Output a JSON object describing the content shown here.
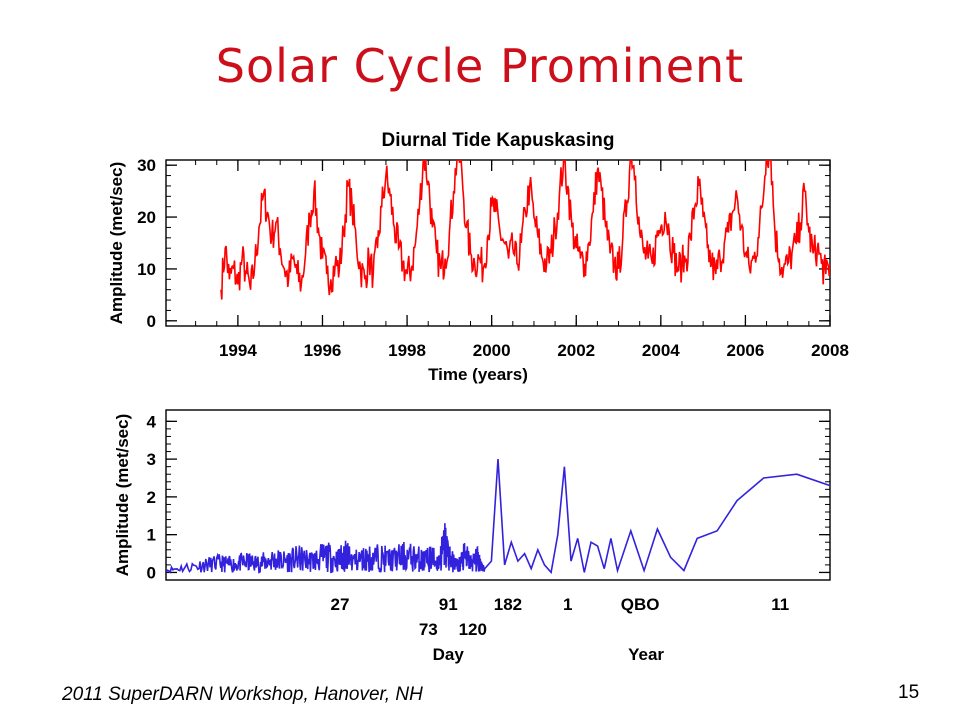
{
  "slide": {
    "title": "Solar Cycle Prominent",
    "footer": "2011 SuperDARN Workshop, Hanover, NH",
    "page_number": "15"
  },
  "chart_data": [
    {
      "type": "line",
      "title": "Diurnal Tide Kapuskasing",
      "xlabel": "Time (years)",
      "ylabel": "Amplitude (met/sec)",
      "xlim": [
        1992.3,
        2008.0
      ],
      "ylim": [
        -1,
        31
      ],
      "x_ticks": [
        1994,
        1996,
        1998,
        2000,
        2002,
        2004,
        2006,
        2008
      ],
      "y_ticks": [
        0,
        10,
        20,
        30
      ],
      "color": "#ff0000",
      "series": [
        {
          "x": [
            1993.6,
            1993.7,
            1993.8,
            1993.9,
            1994.0,
            1994.1,
            1994.2,
            1994.3,
            1994.4,
            1994.5,
            1994.6,
            1994.7,
            1994.8,
            1994.9,
            1995.0,
            1995.1,
            1995.2,
            1995.3,
            1995.4,
            1995.5,
            1995.6,
            1995.7,
            1995.8,
            1995.9,
            1996.0,
            1996.1,
            1996.2,
            1996.3,
            1996.4,
            1996.5,
            1996.6,
            1996.7,
            1996.8,
            1996.9,
            1997.0,
            1997.1,
            1997.2,
            1997.3,
            1997.4,
            1997.5,
            1997.6,
            1997.7,
            1997.8,
            1997.9,
            1998.0,
            1998.1,
            1998.2,
            1998.3,
            1998.4,
            1998.5,
            1998.6,
            1998.7,
            1998.8,
            1998.9,
            1999.0,
            1999.1,
            1999.2,
            1999.3,
            1999.4,
            1999.5,
            1999.6,
            1999.7,
            1999.8,
            1999.9,
            2000.0,
            2000.1,
            2000.2,
            2000.3,
            2000.4,
            2000.5,
            2000.6,
            2000.7,
            2000.8,
            2000.9,
            2001.0,
            2001.1,
            2001.2,
            2001.3,
            2001.4,
            2001.5,
            2001.6,
            2001.7,
            2001.8,
            2001.9,
            2002.0,
            2002.1,
            2002.2,
            2002.3,
            2002.4,
            2002.5,
            2002.6,
            2002.7,
            2002.8,
            2002.9,
            2003.0,
            2003.1,
            2003.2,
            2003.3,
            2003.4,
            2003.5,
            2003.6,
            2003.7,
            2003.8,
            2003.9,
            2004.0,
            2004.1,
            2004.2,
            2004.3,
            2004.4,
            2004.5,
            2004.6,
            2004.7,
            2004.8,
            2004.9,
            2005.0,
            2005.1,
            2005.2,
            2005.3,
            2005.4,
            2005.5,
            2005.6,
            2005.7,
            2005.8,
            2005.9,
            2006.0,
            2006.1,
            2006.2,
            2006.3,
            2006.4,
            2006.5,
            2006.6,
            2006.7,
            2006.8,
            2006.9,
            2007.0,
            2007.1,
            2007.2,
            2007.3,
            2007.4,
            2007.5,
            2007.6,
            2007.7,
            2007.8,
            2007.9,
            2008.0
          ],
          "y": [
            6,
            14,
            8,
            10,
            7,
            12,
            9,
            6,
            11,
            18,
            24,
            21,
            16,
            19,
            14,
            10,
            8,
            12,
            9,
            7,
            13,
            20,
            25,
            18,
            12,
            9,
            8,
            11,
            10,
            17,
            26,
            22,
            15,
            10,
            8,
            12,
            9,
            14,
            22,
            28,
            24,
            18,
            14,
            11,
            9,
            10,
            15,
            23,
            32,
            27,
            18,
            13,
            10,
            12,
            17,
            25,
            33,
            28,
            18,
            13,
            11,
            12,
            10,
            16,
            22,
            21,
            17,
            15,
            12,
            14,
            11,
            15,
            21,
            26,
            20,
            16,
            12,
            11,
            13,
            18,
            24,
            31,
            26,
            18,
            14,
            12,
            11,
            15,
            21,
            29,
            25,
            18,
            13,
            11,
            10,
            16,
            23,
            33,
            28,
            17,
            13,
            12,
            11,
            16,
            18,
            21,
            17,
            13,
            10,
            11,
            12,
            16,
            22,
            26,
            20,
            14,
            11,
            9,
            12,
            15,
            17,
            21,
            24,
            18,
            13,
            10,
            12,
            16,
            22,
            33,
            32,
            17,
            12,
            10,
            11,
            13,
            15,
            19,
            25,
            17,
            13,
            14,
            11,
            9,
            11
          ]
        }
      ]
    },
    {
      "type": "line",
      "xlabel_groups": [
        "Day",
        "Year"
      ],
      "ylabel": "Amplitude (met/sec)",
      "ylim": [
        -0.2,
        4.3
      ],
      "y_ticks": [
        0,
        1,
        2,
        3,
        4
      ],
      "x_tick_labels_row1": [
        "27",
        "91",
        "182",
        "1",
        "QBO",
        "11"
      ],
      "x_tick_labels_row2": [
        "73",
        "120"
      ],
      "color": "#3322dd",
      "series": [
        {
          "x": [
            0.0,
            0.05,
            0.08,
            0.1,
            0.12,
            0.14,
            0.16,
            0.18,
            0.2,
            0.22,
            0.24,
            0.26,
            0.27,
            0.28,
            0.3,
            0.32,
            0.34,
            0.36,
            0.38,
            0.39,
            0.4,
            0.41,
            0.42,
            0.43,
            0.44,
            0.45,
            0.46,
            0.47,
            0.48,
            0.49,
            0.5,
            0.51,
            0.52,
            0.53,
            0.54,
            0.55,
            0.56,
            0.57,
            0.58,
            0.59,
            0.6,
            0.61,
            0.62,
            0.63,
            0.64,
            0.65,
            0.66,
            0.67,
            0.68,
            0.7,
            0.72,
            0.74,
            0.76,
            0.78,
            0.8,
            0.83,
            0.86,
            0.9,
            0.95,
            1.0
          ],
          "y": [
            0.1,
            0.3,
            0.4,
            0.35,
            0.45,
            0.4,
            0.55,
            0.5,
            0.6,
            0.5,
            0.7,
            0.55,
            0.75,
            0.5,
            0.6,
            0.65,
            0.55,
            0.7,
            0.6,
            0.5,
            0.65,
            0.4,
            1.2,
            0.5,
            0.3,
            0.7,
            0.4,
            0.6,
            0.1,
            0.3,
            3.0,
            0.2,
            0.8,
            0.3,
            0.5,
            0.1,
            0.6,
            0.2,
            0.0,
            1.0,
            2.8,
            0.3,
            0.9,
            0.0,
            0.8,
            0.7,
            0.1,
            0.9,
            0.05,
            1.1,
            0.05,
            1.15,
            0.4,
            0.05,
            0.9,
            1.1,
            1.9,
            2.5,
            2.6,
            2.3
          ]
        }
      ]
    }
  ]
}
